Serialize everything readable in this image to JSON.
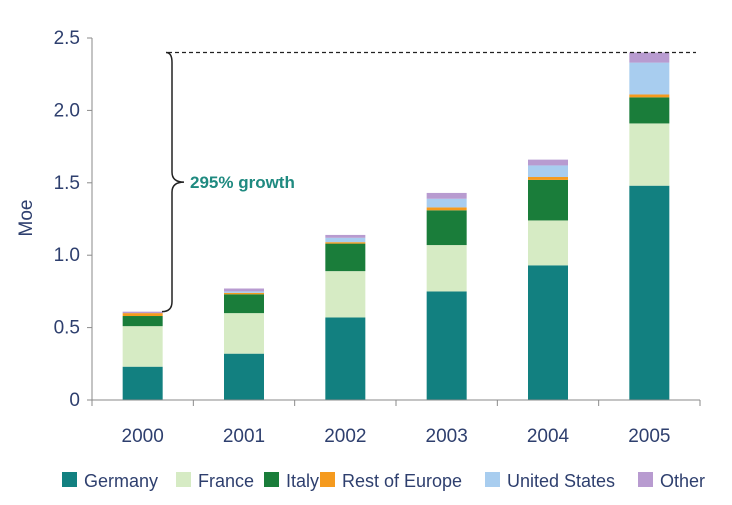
{
  "chart_data": {
    "type": "bar",
    "stacked": true,
    "categories": [
      "2000",
      "2001",
      "2002",
      "2003",
      "2004",
      "2005"
    ],
    "ylabel": "Moe",
    "ylim": [
      0,
      2.5
    ],
    "yticks": [
      "0",
      "0.5",
      "1.0",
      "1.5",
      "2.0",
      "2.5"
    ],
    "grid": false,
    "legend_position": "bottom",
    "series": [
      {
        "name": "Germany",
        "color": "#128080",
        "values": [
          0.23,
          0.32,
          0.57,
          0.75,
          0.93,
          1.48
        ]
      },
      {
        "name": "France",
        "color": "#d6ebc4",
        "values": [
          0.28,
          0.28,
          0.32,
          0.32,
          0.31,
          0.43
        ]
      },
      {
        "name": "Italy",
        "color": "#1a7d3a",
        "values": [
          0.07,
          0.13,
          0.19,
          0.24,
          0.28,
          0.18
        ]
      },
      {
        "name": "Rest of Europe",
        "color": "#f59a1e",
        "values": [
          0.02,
          0.01,
          0.01,
          0.02,
          0.02,
          0.02
        ]
      },
      {
        "name": "United States",
        "color": "#a8cdef",
        "values": [
          0.0,
          0.01,
          0.03,
          0.06,
          0.08,
          0.22
        ]
      },
      {
        "name": "Other",
        "color": "#b89bd0",
        "values": [
          0.01,
          0.02,
          0.02,
          0.04,
          0.04,
          0.07
        ]
      }
    ],
    "annotation": {
      "text": "295% growth",
      "from_value": 0.61,
      "to_value": 2.4
    }
  }
}
